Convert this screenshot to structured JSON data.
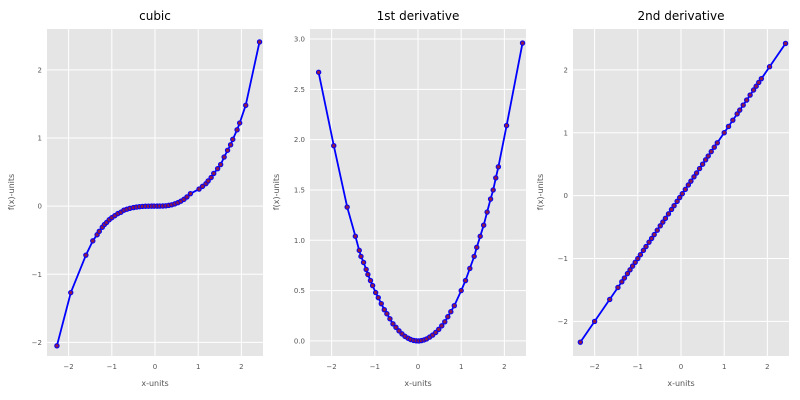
{
  "chart_data": [
    {
      "type": "line",
      "title": "cubic",
      "xlabel": "x-units",
      "ylabel": "f(x)-units",
      "xlim": [
        -2.5,
        2.5
      ],
      "ylim": [
        -2.2,
        2.6
      ],
      "xticks": [
        -2,
        -1,
        0,
        1,
        2
      ],
      "yticks": [
        -2,
        -1,
        0,
        1,
        2
      ],
      "xtick_labels": [
        "−2",
        "−1",
        "0",
        "1",
        "2"
      ],
      "ytick_labels": [
        "−2",
        "−1",
        "0",
        "1",
        "2"
      ],
      "grid": true,
      "series": [
        {
          "x": [
            -2.27,
            -1.95,
            -1.6,
            -1.44,
            -1.34,
            -1.29,
            -1.22,
            -1.17,
            -1.12,
            -1.06,
            -1.0,
            -0.93,
            -0.86,
            -0.79,
            -0.72,
            -0.65,
            -0.58,
            -0.5,
            -0.43,
            -0.36,
            -0.29,
            -0.22,
            -0.15,
            -0.08,
            -0.02,
            0.05,
            0.11,
            0.18,
            0.25,
            0.32,
            0.39,
            0.46,
            0.53,
            0.6,
            0.67,
            0.74,
            0.82,
            1.02,
            1.1,
            1.18,
            1.23,
            1.3,
            1.36,
            1.45,
            1.52,
            1.6,
            1.68,
            1.75,
            1.8,
            1.9,
            1.96,
            2.1,
            2.42
          ],
          "y": [
            -2.05,
            -1.27,
            -0.72,
            -0.51,
            -0.42,
            -0.37,
            -0.31,
            -0.27,
            -0.24,
            -0.2,
            -0.17,
            -0.14,
            -0.11,
            -0.09,
            -0.06,
            -0.045,
            -0.032,
            -0.021,
            -0.014,
            -0.008,
            -0.004,
            -0.002,
            -0.001,
            0.0,
            0.0,
            0.0,
            0.001,
            0.002,
            0.005,
            0.011,
            0.02,
            0.033,
            0.05,
            0.073,
            0.1,
            0.135,
            0.183,
            0.25,
            0.29,
            0.33,
            0.37,
            0.42,
            0.48,
            0.55,
            0.61,
            0.72,
            0.82,
            0.9,
            0.98,
            1.12,
            1.22,
            1.48,
            2.41
          ]
        }
      ]
    },
    {
      "type": "line",
      "title": "1st derivative",
      "xlabel": "x-units",
      "ylabel": "f(x)-units",
      "xlim": [
        -2.5,
        2.5
      ],
      "ylim": [
        -0.15,
        3.1
      ],
      "xticks": [
        -2,
        -1,
        0,
        1,
        2
      ],
      "yticks": [
        0.0,
        0.5,
        1.0,
        1.5,
        2.0,
        2.5,
        3.0
      ],
      "xtick_labels": [
        "−2",
        "−1",
        "0",
        "1",
        "2"
      ],
      "ytick_labels": [
        "0.0",
        "0.5",
        "1.0",
        "1.5",
        "2.0",
        "2.5",
        "3.0"
      ],
      "grid": true,
      "series": [
        {
          "x": [
            -2.3,
            -1.95,
            -1.64,
            -1.45,
            -1.36,
            -1.32,
            -1.26,
            -1.2,
            -1.16,
            -1.1,
            -1.05,
            -0.98,
            -0.92,
            -0.85,
            -0.78,
            -0.72,
            -0.65,
            -0.58,
            -0.51,
            -0.44,
            -0.37,
            -0.3,
            -0.23,
            -0.17,
            -0.1,
            -0.04,
            0.02,
            0.08,
            0.14,
            0.2,
            0.27,
            0.34,
            0.41,
            0.48,
            0.55,
            0.62,
            0.69,
            0.76,
            0.84,
            1.0,
            1.1,
            1.2,
            1.3,
            1.36,
            1.44,
            1.52,
            1.6,
            1.68,
            1.74,
            1.8,
            1.86,
            2.05,
            2.42
          ],
          "y": [
            2.67,
            1.94,
            1.33,
            1.04,
            0.9,
            0.84,
            0.78,
            0.71,
            0.66,
            0.6,
            0.55,
            0.48,
            0.43,
            0.37,
            0.31,
            0.27,
            0.22,
            0.17,
            0.135,
            0.1,
            0.07,
            0.045,
            0.027,
            0.014,
            0.005,
            0.001,
            0.0,
            0.003,
            0.01,
            0.02,
            0.038,
            0.058,
            0.084,
            0.115,
            0.15,
            0.19,
            0.24,
            0.29,
            0.35,
            0.5,
            0.6,
            0.72,
            0.84,
            0.93,
            1.04,
            1.15,
            1.28,
            1.41,
            1.5,
            1.62,
            1.73,
            2.14,
            2.96
          ]
        }
      ]
    },
    {
      "type": "line",
      "title": "2nd derivative",
      "xlabel": "x-units",
      "ylabel": "f(x)-units",
      "xlim": [
        -2.5,
        2.5
      ],
      "ylim": [
        -2.55,
        2.65
      ],
      "xticks": [
        -2,
        -1,
        0,
        1,
        2
      ],
      "yticks": [
        -2,
        -1,
        0,
        1,
        2
      ],
      "xtick_labels": [
        "−2",
        "−1",
        "0",
        "1",
        "2"
      ],
      "ytick_labels": [
        "−2",
        "−1",
        "0",
        "1",
        "2"
      ],
      "grid": true,
      "series": [
        {
          "x": [
            -2.33,
            -2.0,
            -1.65,
            -1.46,
            -1.37,
            -1.31,
            -1.24,
            -1.18,
            -1.12,
            -1.06,
            -1.0,
            -0.94,
            -0.87,
            -0.81,
            -0.74,
            -0.68,
            -0.62,
            -0.55,
            -0.48,
            -0.42,
            -0.36,
            -0.29,
            -0.22,
            -0.16,
            -0.09,
            -0.03,
            0.03,
            0.1,
            0.17,
            0.23,
            0.3,
            0.36,
            0.43,
            0.5,
            0.57,
            0.63,
            0.7,
            0.77,
            0.84,
            1.0,
            1.1,
            1.2,
            1.3,
            1.36,
            1.44,
            1.52,
            1.6,
            1.68,
            1.74,
            1.8,
            1.86,
            2.05,
            2.42
          ],
          "y": [
            -2.33,
            -2.0,
            -1.65,
            -1.46,
            -1.37,
            -1.31,
            -1.24,
            -1.18,
            -1.12,
            -1.06,
            -1.0,
            -0.94,
            -0.87,
            -0.81,
            -0.74,
            -0.68,
            -0.62,
            -0.55,
            -0.48,
            -0.42,
            -0.36,
            -0.29,
            -0.22,
            -0.16,
            -0.09,
            -0.03,
            0.03,
            0.1,
            0.17,
            0.23,
            0.3,
            0.36,
            0.43,
            0.5,
            0.57,
            0.63,
            0.7,
            0.77,
            0.84,
            1.0,
            1.1,
            1.2,
            1.3,
            1.36,
            1.44,
            1.52,
            1.6,
            1.68,
            1.74,
            1.8,
            1.86,
            2.05,
            2.42
          ]
        }
      ]
    }
  ],
  "style": {
    "line_color": "#0000ff",
    "marker_fill": "#8b1a4a",
    "marker_edge": "#0000ff",
    "panel_background": "#e5e5e5",
    "grid_color": "#ffffff"
  }
}
